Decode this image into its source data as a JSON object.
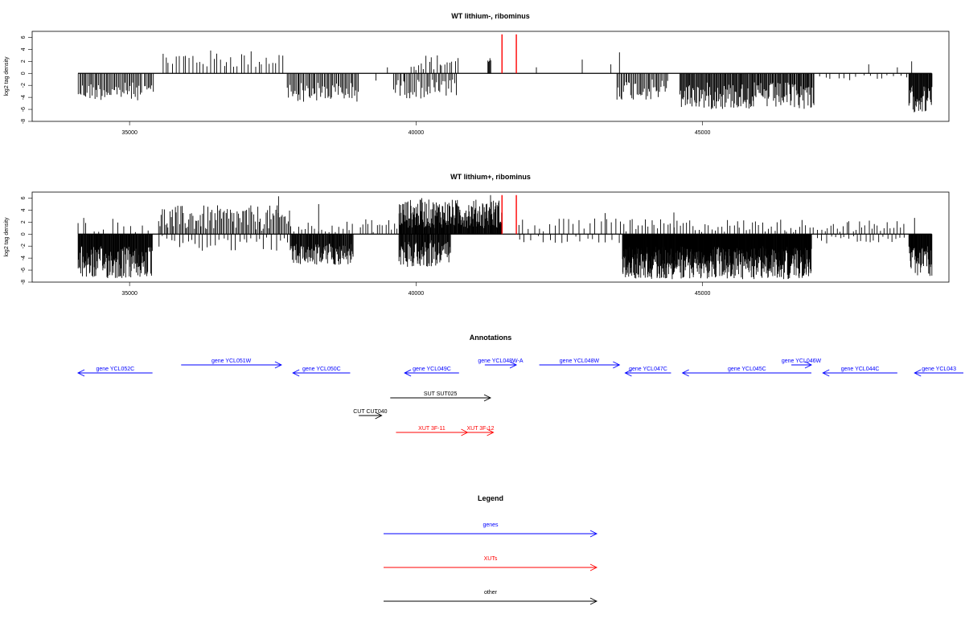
{
  "chart_data": [
    {
      "type": "bar",
      "title": "WT lithium-, ribominus",
      "xlabel": "",
      "ylabel": "log2 tag density",
      "xlim": [
        33300,
        49300
      ],
      "ylim": [
        -8,
        7
      ],
      "xticks": [
        35000,
        40000,
        45000
      ],
      "yticks": [
        6,
        4,
        2,
        0,
        -2,
        -4,
        -6,
        -8
      ],
      "baseline_range": [
        34100,
        49000
      ],
      "highlight_color": "#ff0000",
      "bar_color": "#000000",
      "highlight_x": [
        41500,
        41750
      ],
      "highlight_y": 6.5,
      "segments": [
        {
          "start": 34100,
          "end": 35200,
          "sign": -1,
          "min": 1.5,
          "max": 4.5,
          "step": 22
        },
        {
          "start": 35250,
          "end": 35420,
          "sign": -1,
          "min": 2,
          "max": 3.5,
          "step": 22
        },
        {
          "start": 35550,
          "end": 37700,
          "sign": 1,
          "min": 0.8,
          "max": 3.9,
          "step": 60
        },
        {
          "start": 37750,
          "end": 39000,
          "sign": -1,
          "min": 1.5,
          "max": 4.8,
          "step": 22
        },
        {
          "start": 39600,
          "end": 40700,
          "sign": -1,
          "min": 1,
          "max": 4.2,
          "step": 28
        },
        {
          "start": 39900,
          "end": 40750,
          "sign": 1,
          "min": 0.5,
          "max": 3.2,
          "step": 45
        },
        {
          "start": 41250,
          "end": 41300,
          "sign": 1,
          "min": 1.8,
          "max": 2.7,
          "step": 12
        },
        {
          "start": 43500,
          "end": 44400,
          "sign": -1,
          "min": 1,
          "max": 4.5,
          "step": 22
        },
        {
          "start": 44600,
          "end": 46950,
          "sign": -1,
          "min": 1.5,
          "max": 6,
          "step": 14
        },
        {
          "start": 47000,
          "end": 48600,
          "sign": -1,
          "min": 0.3,
          "max": 1.2,
          "step": 110
        },
        {
          "start": 48600,
          "end": 49000,
          "sign": -1,
          "min": 2,
          "max": 6.5,
          "step": 10
        }
      ],
      "extras": [
        {
          "x": 39500,
          "y": 1.0
        },
        {
          "x": 39300,
          "y": -1.2
        },
        {
          "x": 39800,
          "y": -1.5
        },
        {
          "x": 42100,
          "y": 1.0
        },
        {
          "x": 42900,
          "y": 2.3
        },
        {
          "x": 43400,
          "y": 1.5
        },
        {
          "x": 43550,
          "y": 3.5
        },
        {
          "x": 47900,
          "y": 1.5
        },
        {
          "x": 48400,
          "y": 1.0
        },
        {
          "x": 48650,
          "y": 2.0
        }
      ]
    },
    {
      "type": "bar",
      "title": "WT lithium+, ribominus",
      "xlabel": "",
      "ylabel": "log2 tag density",
      "xlim": [
        33300,
        49300
      ],
      "ylim": [
        -8,
        7
      ],
      "xticks": [
        35000,
        40000,
        45000
      ],
      "yticks": [
        6,
        4,
        2,
        0,
        -2,
        -4,
        -6,
        -8
      ],
      "baseline_range": [
        34100,
        49000
      ],
      "highlight_color": "#ff0000",
      "bar_color": "#000000",
      "highlight_x": [
        41500,
        41750
      ],
      "highlight_y": 6.5,
      "segments": [
        {
          "start": 34100,
          "end": 35400,
          "sign": -1,
          "min": 2,
          "max": 7.5,
          "step": 9
        },
        {
          "start": 34100,
          "end": 35400,
          "sign": 1,
          "min": 0.3,
          "max": 2.7,
          "step": 110
        },
        {
          "start": 35500,
          "end": 37800,
          "sign": 1,
          "min": 0.5,
          "max": 4.8,
          "step": 24
        },
        {
          "start": 35500,
          "end": 37800,
          "sign": -1,
          "min": 0.3,
          "max": 2.8,
          "step": 70
        },
        {
          "start": 37800,
          "end": 38900,
          "sign": -1,
          "min": 1.5,
          "max": 5.2,
          "step": 10
        },
        {
          "start": 37800,
          "end": 38900,
          "sign": 1,
          "min": 0.3,
          "max": 2.2,
          "step": 60
        },
        {
          "start": 39000,
          "end": 39700,
          "sign": 1,
          "min": 0.3,
          "max": 2.5,
          "step": 50
        },
        {
          "start": 39700,
          "end": 41500,
          "sign": 1,
          "min": 1,
          "max": 5.8,
          "step": 9
        },
        {
          "start": 39700,
          "end": 40600,
          "sign": -1,
          "min": 1,
          "max": 5.5,
          "step": 10
        },
        {
          "start": 41750,
          "end": 43600,
          "sign": 1,
          "min": 0.3,
          "max": 2.6,
          "step": 90
        },
        {
          "start": 41750,
          "end": 43600,
          "sign": -1,
          "min": 0.3,
          "max": 1.5,
          "step": 110
        },
        {
          "start": 43600,
          "end": 46900,
          "sign": -1,
          "min": 2,
          "max": 7.5,
          "step": 6
        },
        {
          "start": 43600,
          "end": 46900,
          "sign": 1,
          "min": 0.3,
          "max": 2.5,
          "step": 55
        },
        {
          "start": 47000,
          "end": 48500,
          "sign": 1,
          "min": 0.3,
          "max": 2.3,
          "step": 55
        },
        {
          "start": 47000,
          "end": 48500,
          "sign": -1,
          "min": 0.3,
          "max": 1.6,
          "step": 75
        },
        {
          "start": 48600,
          "end": 49000,
          "sign": -1,
          "min": 2,
          "max": 7,
          "step": 8
        }
      ],
      "extras": [
        {
          "x": 34200,
          "y": 2.7
        },
        {
          "x": 37600,
          "y": 6.3
        },
        {
          "x": 38300,
          "y": 5.0
        },
        {
          "x": 40100,
          "y": 6.0
        },
        {
          "x": 41300,
          "y": 6.5
        },
        {
          "x": 43300,
          "y": 3.5
        },
        {
          "x": 44500,
          "y": 3.6
        },
        {
          "x": 45700,
          "y": -7.5
        },
        {
          "x": 48700,
          "y": 2.7
        }
      ]
    }
  ],
  "annotations": {
    "title": "Annotations",
    "genes_color": "#0000ff",
    "xuts_color": "#ff0000",
    "other_color": "#000000",
    "items": [
      {
        "label": "gene YCL052C",
        "type": "gene",
        "dir": "left",
        "start": 34100,
        "end": 35400,
        "row": 1
      },
      {
        "label": "gene YCL051W",
        "type": "gene",
        "dir": "right",
        "start": 35900,
        "end": 37650,
        "row": 0
      },
      {
        "label": "gene YCL050C",
        "type": "gene",
        "dir": "left",
        "start": 37850,
        "end": 38850,
        "row": 1
      },
      {
        "label": "gene YCL049C",
        "type": "gene",
        "dir": "left",
        "start": 39800,
        "end": 40750,
        "row": 1
      },
      {
        "label": "gene YCL048W-A",
        "type": "gene",
        "dir": "right",
        "start": 41200,
        "end": 41750,
        "row": 0
      },
      {
        "label": "gene YCL048W",
        "type": "gene",
        "dir": "right",
        "start": 42150,
        "end": 43550,
        "row": 0
      },
      {
        "label": "gene YCL047C",
        "type": "gene",
        "dir": "left",
        "start": 43650,
        "end": 44450,
        "row": 1
      },
      {
        "label": "gene YCL045C",
        "type": "gene",
        "dir": "left",
        "start": 44650,
        "end": 46900,
        "row": 1
      },
      {
        "label": "gene YCL046W",
        "type": "gene",
        "dir": "right",
        "start": 46550,
        "end": 46900,
        "row": 0
      },
      {
        "label": "gene YCL044C",
        "type": "gene",
        "dir": "left",
        "start": 47100,
        "end": 48400,
        "row": 1
      },
      {
        "label": "gene YCL043",
        "type": "gene",
        "dir": "left",
        "start": 48700,
        "end": 49900,
        "row": 1
      },
      {
        "label": "SUT SUT025",
        "type": "other",
        "dir": "right",
        "start": 39550,
        "end": 41300,
        "row": 2
      },
      {
        "label": "CUT CUT040",
        "type": "other",
        "dir": "right",
        "start": 39000,
        "end": 39400,
        "row": 3
      },
      {
        "label": "XUT 3F-11",
        "type": "xut",
        "dir": "right",
        "start": 39650,
        "end": 40900,
        "row": 4
      },
      {
        "label": "XUT 3F-12",
        "type": "xut",
        "dir": "right",
        "start": 40900,
        "end": 41350,
        "row": 4
      }
    ]
  },
  "legend": {
    "title": "Legend",
    "entries": [
      {
        "label": "genes",
        "color": "#0000ff"
      },
      {
        "label": "XUTs",
        "color": "#ff0000"
      },
      {
        "label": "other",
        "color": "#000000"
      }
    ]
  }
}
